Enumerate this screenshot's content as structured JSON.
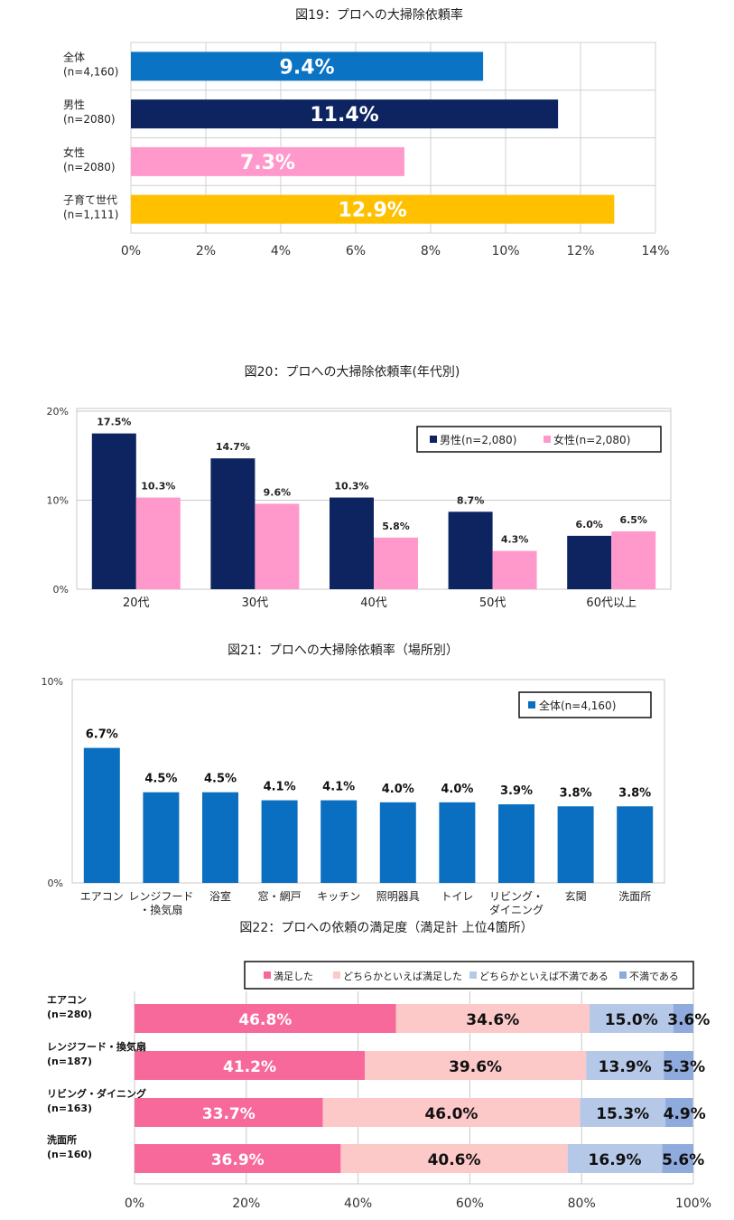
{
  "chart_data": [
    {
      "type": "bar",
      "orientation": "horizontal",
      "title": "図19：プロへの大掃除依頼率",
      "categories": [
        [
          "全体",
          "(n=4,160)"
        ],
        [
          "男性",
          "(n=2080)"
        ],
        [
          "女性",
          "(n=2080)"
        ],
        [
          "子育て世代",
          "(n=1,111)"
        ]
      ],
      "values": [
        9.4,
        11.4,
        7.3,
        12.9
      ],
      "value_labels": [
        "9.4%",
        "11.4%",
        "7.3%",
        "12.9%"
      ],
      "colors": [
        "#0a73c4",
        "#0d2461",
        "#ff99cc",
        "#ffc000"
      ],
      "xlim": [
        0,
        14
      ],
      "xticks": [
        "0%",
        "2%",
        "4%",
        "6%",
        "8%",
        "10%",
        "12%",
        "14%"
      ]
    },
    {
      "type": "bar",
      "title": "図20：プロへの大掃除依頼率(年代別)",
      "categories": [
        "20代",
        "30代",
        "40代",
        "50代",
        "60代以上"
      ],
      "series": [
        {
          "name": "男性(n=2,080)",
          "color": "#0d2461",
          "values": [
            17.5,
            14.7,
            10.3,
            8.7,
            6.0
          ],
          "labels": [
            "17.5%",
            "14.7%",
            "10.3%",
            "8.7%",
            "6.0%"
          ]
        },
        {
          "name": "女性(n=2,080)",
          "color": "#ff99cc",
          "values": [
            10.3,
            9.6,
            5.8,
            4.3,
            6.5
          ],
          "labels": [
            "10.3%",
            "9.6%",
            "5.8%",
            "4.3%",
            "6.5%"
          ]
        }
      ],
      "ylim": [
        0,
        20
      ],
      "yticks": [
        "0%",
        "10%",
        "20%"
      ],
      "legend": "top-right"
    },
    {
      "type": "bar",
      "title": "図21：プロへの大掃除依頼率（場所別）",
      "categories": [
        [
          "エアコン"
        ],
        [
          "レンジフード",
          "・換気扇"
        ],
        [
          "浴室"
        ],
        [
          "窓・網戸"
        ],
        [
          "キッチン"
        ],
        [
          "照明器具"
        ],
        [
          "トイレ"
        ],
        [
          "リビング・",
          "ダイニング"
        ],
        [
          "玄関"
        ],
        [
          "洗面所"
        ]
      ],
      "series": [
        {
          "name": "全体(n=4,160)",
          "color": "#0a6fc0",
          "values": [
            6.7,
            4.5,
            4.5,
            4.1,
            4.1,
            4.0,
            4.0,
            3.9,
            3.8,
            3.8
          ],
          "labels": [
            "6.7%",
            "4.5%",
            "4.5%",
            "4.1%",
            "4.1%",
            "4.0%",
            "4.0%",
            "3.9%",
            "3.8%",
            "3.8%"
          ]
        }
      ],
      "ylim": [
        0,
        10
      ],
      "yticks": [
        "0%",
        "10%"
      ],
      "legend": "top-right"
    },
    {
      "type": "bar",
      "stacked": true,
      "orientation": "horizontal",
      "title": "図22：プロへの依頼の満足度（満足計 上位4箇所）",
      "categories": [
        [
          "エアコン",
          "(n=280)"
        ],
        [
          "レンジフード・換気扇",
          "(n=187)"
        ],
        [
          "リビング・ダイニング",
          "(n=163)"
        ],
        [
          "洗面所",
          "(n=160)"
        ]
      ],
      "series": [
        {
          "name": "満足した",
          "color": "#f7699a",
          "text_color": "#ffffff",
          "values": [
            46.8,
            41.2,
            33.7,
            36.9
          ],
          "labels": [
            "46.8%",
            "41.2%",
            "33.7%",
            "36.9%"
          ]
        },
        {
          "name": "どちらかといえば満足した",
          "color": "#fdc8c8",
          "text_color": "#111111",
          "values": [
            34.6,
            39.6,
            46.0,
            40.6
          ],
          "labels": [
            "34.6%",
            "39.6%",
            "46.0%",
            "40.6%"
          ]
        },
        {
          "name": "どちらかといえば不満である",
          "color": "#b6c8e8",
          "text_color": "#111111",
          "values": [
            15.0,
            13.9,
            15.3,
            16.9
          ],
          "labels": [
            "15.0%",
            "13.9%",
            "15.3%",
            "16.9%"
          ]
        },
        {
          "name": "不満である",
          "color": "#8faadc",
          "text_color": "#111111",
          "values": [
            3.6,
            5.3,
            4.9,
            5.6
          ],
          "labels": [
            "3.6%",
            "5.3%",
            "4.9%",
            "5.6%"
          ]
        }
      ],
      "xlim": [
        0,
        100
      ],
      "xticks": [
        "0%",
        "20%",
        "40%",
        "60%",
        "80%",
        "100%"
      ],
      "legend": "top"
    }
  ]
}
